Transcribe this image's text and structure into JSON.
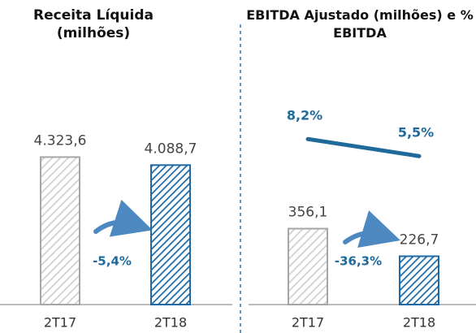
{
  "chart_data": [
    {
      "type": "bar",
      "title": "Receita Líquida (milhões)",
      "categories": [
        "2T17",
        "2T18"
      ],
      "series": [
        {
          "values": [
            4323.6,
            4088.7
          ],
          "value_labels": [
            "4.323,6",
            "4.088,7"
          ],
          "colors": [
            "#a6a6a6",
            "#1f6aa5"
          ]
        }
      ],
      "ylim": [
        0,
        5000
      ],
      "annotation": "-5,4%"
    },
    {
      "type": "bar",
      "title": "EBITDA Ajustado (milhões) e % EBITDA",
      "categories": [
        "2T17",
        "2T18"
      ],
      "series": [
        {
          "values": [
            356.1,
            226.7
          ],
          "value_labels": [
            "356,1",
            "226,7"
          ],
          "colors": [
            "#a6a6a6",
            "#1f6aa5"
          ]
        },
        {
          "type": "line",
          "axis": "y2",
          "values": [
            8.2,
            5.5
          ],
          "value_labels": [
            "8,2%",
            "5,5%"
          ],
          "color": "#1f6a9a"
        }
      ],
      "ylim": [
        0,
        800
      ],
      "y2lim": [
        -18,
        9
      ],
      "annotation": "-36,3%"
    }
  ]
}
